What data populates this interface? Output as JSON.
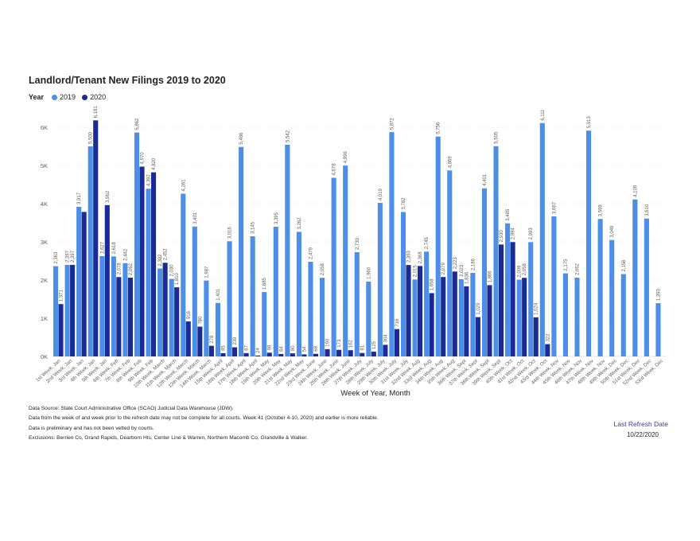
{
  "title": "Landlord/Tenant New Filings 2019 to 2020",
  "legend": {
    "title": "Year",
    "items": [
      {
        "label": "2019",
        "color": "#4d8ee6"
      },
      {
        "label": "2020",
        "color": "#1a2b94"
      }
    ]
  },
  "footer": {
    "lines": [
      "Data Source: State Court Administrative Office (SCAO) Judicial Data Warehouse (JDW).",
      "Data from the week of and week prior to the refresh date may not be complete for all courts. Week 41 (October 4-10, 2020) and earlier is more reliable.",
      "Data is preliminary and has not been vetted by courts.",
      "Exclusions: Berrien Co, Grand Rapids, Dearborn Hts, Center Line & Warren, Northern Macomb Co, Grandville & Walker."
    ],
    "refresh_label": "Last Refresh Date",
    "refresh_date": "10/22/2020"
  },
  "chart_data": {
    "type": "bar",
    "title": "Landlord/Tenant New Filings 2019 to 2020",
    "xlabel": "Week of Year, Month",
    "ylabel": "",
    "ylim": [
      0,
      6000
    ],
    "yticks": [
      0,
      1000,
      2000,
      3000,
      4000,
      5000,
      6000
    ],
    "ytick_labels": [
      "0K",
      "1K",
      "2K",
      "3K",
      "4K",
      "5K",
      "6K"
    ],
    "grid": true,
    "legend_position": "top-left",
    "categories": [
      "1st Week, Jan",
      "2nd Week, Jan",
      "3rd Week, Jan",
      "4th Week, Jan",
      "5th Week, Jan",
      "6th Week, Feb",
      "7th Week, Feb",
      "8th Week, Feb",
      "9th Week, Feb",
      "10th Week, March",
      "11th Week, March",
      "12th Week, March",
      "13th Week, March",
      "14th Week, March",
      "15th Week, April",
      "16th Week, April",
      "17th Week, April",
      "18th Week, April",
      "19th Week, May",
      "20th Week, May",
      "21st Week, May",
      "22nd Week, May",
      "23rd Week, June",
      "24th Week, June",
      "25th Week, June",
      "26th Week, June",
      "27th Week, July",
      "28th Week, July",
      "29th Week, July",
      "30th Week, July",
      "31st Week, July",
      "32nd Week, Aug",
      "33rd Week, Aug",
      "34th Week, Aug",
      "35th Week, Aug",
      "36th Week, Sept",
      "37th Week, Sept",
      "38th Week, Sept",
      "39th Week, Sept",
      "40th Week, Oct",
      "41st Week, Oct",
      "42nd Week, Oct",
      "43rd Week, Oct",
      "44th Week, Nov",
      "45th Week, Nov",
      "46th Week, Nov",
      "47th Week, Nov",
      "48th Week, Nov",
      "49th Week, Dec",
      "50th Week, Dec",
      "51st Week, Dec",
      "52nd Week, Dec",
      "53rd Week, Dec"
    ],
    "series": [
      {
        "name": "2019",
        "color": "#4d8ee6",
        "values": [
          2363,
          2397,
          3917,
          5500,
          2627,
          2618,
          2442,
          5862,
          4392,
          2302,
          2030,
          4261,
          3401,
          1987,
          1401,
          3016,
          5486,
          3145,
          1685,
          3395,
          5542,
          3262,
          2479,
          2058,
          4678,
          4996,
          2730,
          1960,
          4019,
          5872,
          3782,
          2015,
          2745,
          5756,
          4869,
          2023,
          2186,
          4401,
          5505,
          3485,
          2009,
          2993,
          6111,
          3667,
          2175,
          2062,
          5913,
          3599,
          3049,
          2156,
          4109,
          3610,
          1393
        ]
      },
      {
        "name": "2020",
        "color": "#1a2b94",
        "values": [
          1371,
          2397,
          3784,
          6181,
          3962,
          2078,
          2062,
          4970,
          4820,
          2452,
          1810,
          916,
          780,
          278,
          85,
          239,
          87,
          24,
          98,
          64,
          80,
          54,
          68,
          190,
          173,
          162,
          91,
          125,
          304,
          716,
          2393,
          2368,
          1658,
          2079,
          2223,
          1836,
          1029,
          1866,
          2930,
          2994,
          2058,
          1024,
          322,
          null,
          null,
          null,
          null,
          null,
          null,
          null,
          null,
          null,
          null
        ]
      }
    ],
    "value_labels": {
      "2019": [
        "2,363",
        "2,397",
        "3,917",
        "5,500",
        "2,627",
        "2,618",
        "2,442",
        "5,862",
        "4,392",
        "2,302",
        "2,030",
        "4,261",
        "3,401",
        "1,987",
        "1,401",
        "3,016",
        "5,486",
        "3,145",
        "1,685",
        "3,395",
        "5,542",
        "3,262",
        "2,479",
        "2,058",
        "4,678",
        "4,996",
        "2,730",
        "1,960",
        "4,019",
        "5,872",
        "3,782",
        "2,015",
        "2,745",
        "5,756",
        "4,869",
        "2,023",
        "2,186",
        "4,401",
        "5,505",
        "3,485",
        "2,009",
        "2,993",
        "6,111",
        "3,667",
        "2,175",
        "2,062",
        "5,913",
        "3,599",
        "3,049",
        "2,156",
        "4,109",
        "3,610",
        "1,393"
      ],
      "2020": [
        "1,371",
        "2,397",
        "",
        "6,181",
        "3,962",
        "2,078",
        "2,062",
        "4,970",
        "4,820",
        "2,452",
        "1,810",
        "916",
        "780",
        "278",
        "85",
        "239",
        "87",
        "24",
        "98",
        "64",
        "80",
        "54",
        "68",
        "190",
        "173",
        "162",
        "91",
        "125",
        "304",
        "716",
        "2,393",
        "2,368",
        "1,658",
        "2,079",
        "2,223",
        "1,836",
        "1,029",
        "1,866",
        "2,930",
        "2,994",
        "2,058",
        "1,024",
        "322",
        "",
        "",
        "",
        "",
        "",
        "",
        "",
        "",
        "",
        ""
      ]
    }
  }
}
